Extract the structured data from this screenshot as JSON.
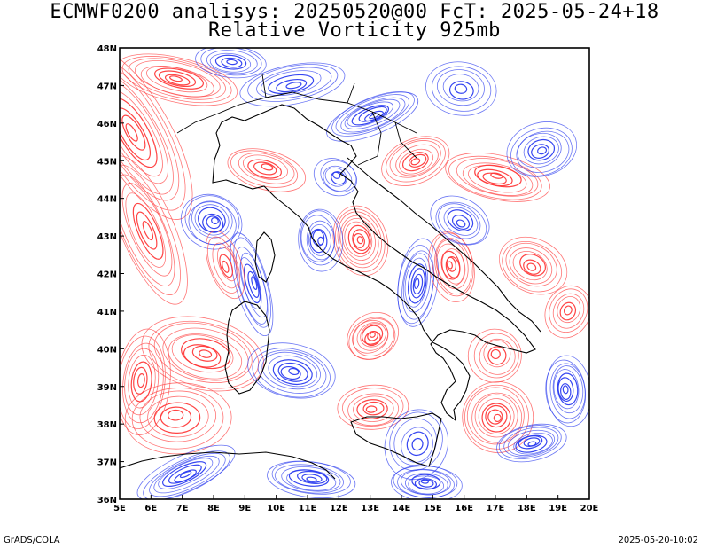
{
  "header": {
    "line1": "ECMWF0200 analisys: 20250520@00 FcT: 2025-05-24+18",
    "line2": "Relative Vorticity 925mb"
  },
  "axes": {
    "lon_labels": [
      "5E",
      "6E",
      "7E",
      "8E",
      "9E",
      "10E",
      "11E",
      "12E",
      "13E",
      "14E",
      "15E",
      "16E",
      "17E",
      "18E",
      "19E",
      "20E"
    ],
    "lat_labels": [
      "36N",
      "37N",
      "38N",
      "39N",
      "40N",
      "41N",
      "42N",
      "43N",
      "44N",
      "45N",
      "46N",
      "47N",
      "48N"
    ],
    "lon_range": [
      5,
      20
    ],
    "lat_range": [
      36,
      48
    ]
  },
  "colors": {
    "positive_vorticity": "#ff3a3a",
    "negative_vorticity": "#2b3cf0",
    "coastline": "#000000",
    "frame": "#000000"
  },
  "footer": {
    "left": "GrADS/COLA",
    "right": "2025-05-20-10:02"
  }
}
